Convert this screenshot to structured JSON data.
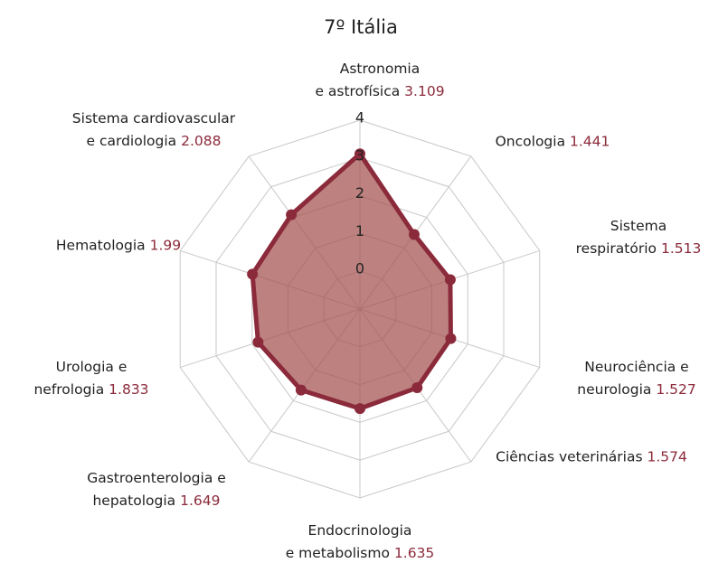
{
  "chart_data": {
    "type": "radar",
    "title": "7º Itália",
    "categories": [
      "Astronomia\ne astrofísica",
      "Oncologia",
      "Sistema\nrespiratório",
      "Neurociência e\nneurologia",
      "Ciências veterinárias",
      "Endocrinologia\ne metabolismo",
      "Gastroenterologia e\nhepatologia",
      "Urologia e\nnefrologia",
      "Hematologia",
      "Sistema cardiovascular\ne cardiologia"
    ],
    "values": [
      3.109,
      1.441,
      1.513,
      1.527,
      1.574,
      1.635,
      1.649,
      1.833,
      1.99,
      2.088
    ],
    "color": "#8b2a3a",
    "fill": "#a3524f",
    "ylim": [
      -1,
      4
    ],
    "yticks": [
      0,
      1,
      2,
      3,
      4
    ],
    "grid": true
  }
}
